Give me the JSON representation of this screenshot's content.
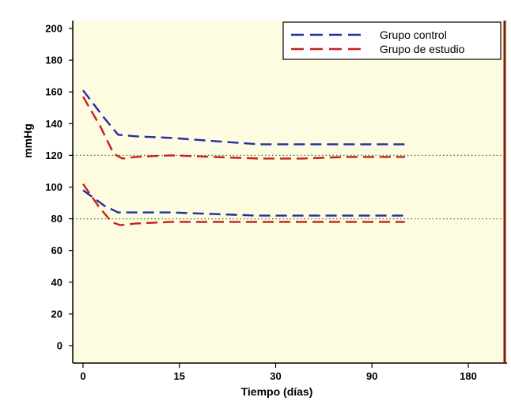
{
  "chart_data": {
    "type": "line",
    "xlabel": "Tiempo (días)",
    "ylabel": "mmHg",
    "x_tick_labels": [
      "0",
      "15",
      "30",
      "90",
      "180"
    ],
    "ylim": [
      -10,
      205
    ],
    "y_ticks": [
      0,
      20,
      40,
      60,
      80,
      100,
      120,
      140,
      160,
      180,
      200
    ],
    "x_tick_positions": [
      0,
      4.4,
      8.8,
      13.2,
      17.6
    ],
    "reference_lines": [
      120,
      80
    ],
    "legend_position": "top-right",
    "series": [
      {
        "name": "Grupo control",
        "color": "#1f2fa0",
        "style": "dashed",
        "curves": [
          {
            "x": [
              0,
              1,
              1.6,
              2.4,
              4,
              6,
              8,
              10,
              12,
              14,
              14.7
            ],
            "y": [
              161,
              143,
              133,
              132,
              131,
              129,
              127,
              127,
              127,
              127,
              127
            ]
          },
          {
            "x": [
              0,
              1,
              1.6,
              2.4,
              4,
              6,
              8,
              10,
              12,
              14,
              14.7
            ],
            "y": [
              98,
              88,
              84,
              84,
              84,
              83,
              82,
              82,
              82,
              82,
              82
            ]
          }
        ]
      },
      {
        "name": "Grupo de estudio",
        "color": "#c8201f",
        "style": "dashed",
        "curves": [
          {
            "x": [
              0,
              0.8,
              1.4,
              1.8,
              2.4,
              4,
              6,
              8,
              10,
              12,
              14,
              14.7
            ],
            "y": [
              157,
              138,
              121,
              118,
              119,
              120,
              119,
              118,
              118,
              119,
              119,
              119
            ]
          },
          {
            "x": [
              0,
              0.7,
              1.3,
              1.7,
              2.4,
              4,
              6,
              8,
              10,
              12,
              14,
              14.7
            ],
            "y": [
              102,
              88,
              78,
              76,
              77,
              78,
              78,
              78,
              78,
              78,
              78,
              78
            ]
          }
        ]
      }
    ]
  }
}
